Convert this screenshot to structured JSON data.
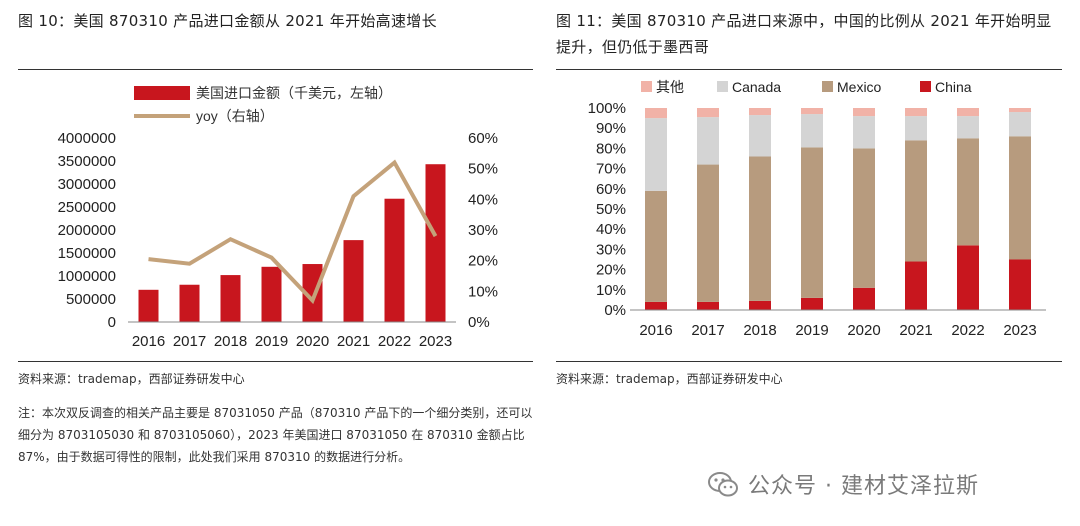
{
  "left": {
    "title": "图 10：美国 870310 产品进口金额从 2021 年开始高速增长",
    "source": "资料来源：trademap，西部证券研发中心",
    "note": "注：本次双反调查的相关产品主要是 87031050 产品（870310 产品下的一个细分类别，还可以细分为 8703105030 和 8703105060），2023 年美国进口 87031050 在 870310 金额占比 87%，由于数据可得性的限制，此处我们采用 870310 的数据进行分析。"
  },
  "right": {
    "title": "图 11：美国 870310 产品进口来源中，中国的比例从 2021 年开始明显提升，但仍低于墨西哥",
    "source": "资料来源：trademap，西部证券研发中心"
  },
  "watermark": "公众号 · 建材艾泽拉斯",
  "colors": {
    "bar_red": "#c8161e",
    "line_tan": "#c4a27a",
    "china": "#c8161e",
    "mexico": "#b79b7e",
    "canada": "#d4d4d4",
    "other": "#f1b2a7"
  },
  "chart_data": [
    {
      "type": "bar+line",
      "categories": [
        "2016",
        "2017",
        "2018",
        "2019",
        "2020",
        "2021",
        "2022",
        "2023"
      ],
      "series": [
        {
          "name": "美国进口金额（千美元，左轴）",
          "type": "bar",
          "axis": "left",
          "values": [
            700000,
            810000,
            1020000,
            1200000,
            1260000,
            1780000,
            2680000,
            3430000
          ]
        },
        {
          "name": "yoy（右轴）",
          "type": "line",
          "axis": "right",
          "values": [
            20.5,
            19.0,
            27.0,
            21.0,
            7.0,
            41.0,
            52.0,
            28.0
          ]
        }
      ],
      "yleft": {
        "min": 0,
        "max": 4000000,
        "ticks": [
          "0",
          "500000",
          "1000000",
          "1500000",
          "2000000",
          "2500000",
          "3000000",
          "3500000",
          "4000000"
        ]
      },
      "yright": {
        "min": 0,
        "max": 60,
        "ticks": [
          "0%",
          "10%",
          "20%",
          "30%",
          "40%",
          "50%",
          "60%"
        ]
      },
      "legend_position": "top-left"
    },
    {
      "type": "stacked-bar",
      "categories": [
        "2016",
        "2017",
        "2018",
        "2019",
        "2020",
        "2021",
        "2022",
        "2023"
      ],
      "series": [
        {
          "name": "China",
          "values": [
            4,
            4,
            4.5,
            6,
            11,
            24,
            32,
            25
          ]
        },
        {
          "name": "Mexico",
          "values": [
            55,
            68,
            71.5,
            74.5,
            69,
            60,
            53,
            61
          ]
        },
        {
          "name": "Canada",
          "values": [
            36,
            23.5,
            20.5,
            16.5,
            16,
            12,
            11,
            12
          ]
        },
        {
          "name": "其他",
          "values": [
            5,
            4.5,
            3.5,
            3,
            4,
            4,
            4,
            2
          ]
        }
      ],
      "legend_order": [
        "其他",
        "Canada",
        "Mexico",
        "China"
      ],
      "yaxis": {
        "min": 0,
        "max": 100,
        "ticks": [
          "0%",
          "10%",
          "20%",
          "30%",
          "40%",
          "50%",
          "60%",
          "70%",
          "80%",
          "90%",
          "100%"
        ]
      },
      "legend_position": "top"
    }
  ]
}
